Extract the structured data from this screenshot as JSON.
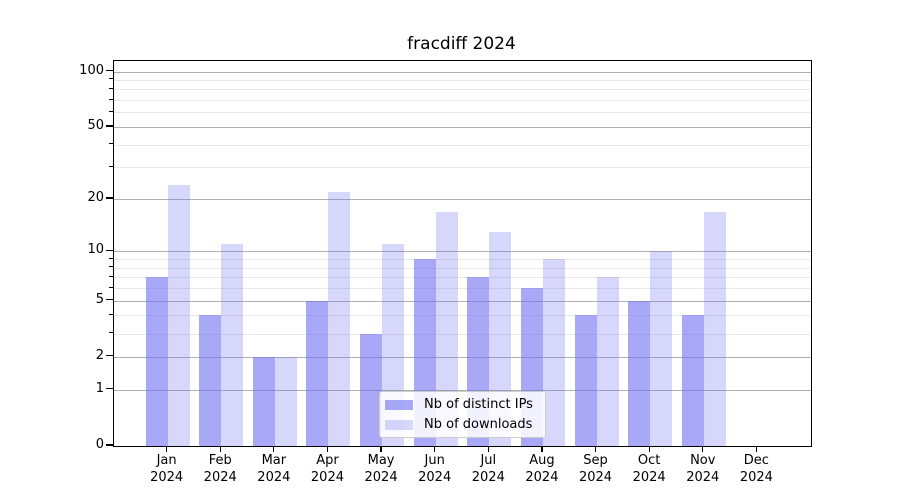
{
  "title": "fracdiff 2024",
  "chart_data": {
    "type": "bar",
    "title": "fracdiff 2024",
    "categories": [
      "Jan 2024",
      "Feb 2024",
      "Mar 2024",
      "Apr 2024",
      "May 2024",
      "Jun 2024",
      "Jul 2024",
      "Aug 2024",
      "Sep 2024",
      "Oct 2024",
      "Nov 2024",
      "Dec 2024"
    ],
    "series": [
      {
        "name": "Nb of distinct IPs",
        "color": "rgba(110,110,240,0.60)",
        "values": [
          7,
          4,
          2,
          5,
          3,
          9,
          7,
          6,
          4,
          5,
          4,
          0
        ]
      },
      {
        "name": "Nb of downloads",
        "color": "rgba(110,110,240,0.28)",
        "values": [
          24,
          11,
          2,
          22,
          11,
          17,
          13,
          9,
          7,
          10,
          17,
          0
        ]
      }
    ],
    "scale": "log1p",
    "ylim": [
      0,
      114
    ],
    "xlabel": "",
    "ylabel": "",
    "y_major_ticks": [
      0,
      1,
      2,
      5,
      10,
      20,
      50,
      100
    ],
    "y_minor_ticks": [
      3,
      4,
      6,
      7,
      8,
      9,
      30,
      40,
      60,
      70,
      80,
      90
    ],
    "grid": true,
    "legend_position": "lower-center",
    "colors": {
      "background": "#ffffff",
      "axis": "#000000",
      "grid_major": "#b0b0b0",
      "grid_minor": "#e8e8e8",
      "legend_border": "#cccccc",
      "text": "#000000"
    }
  }
}
